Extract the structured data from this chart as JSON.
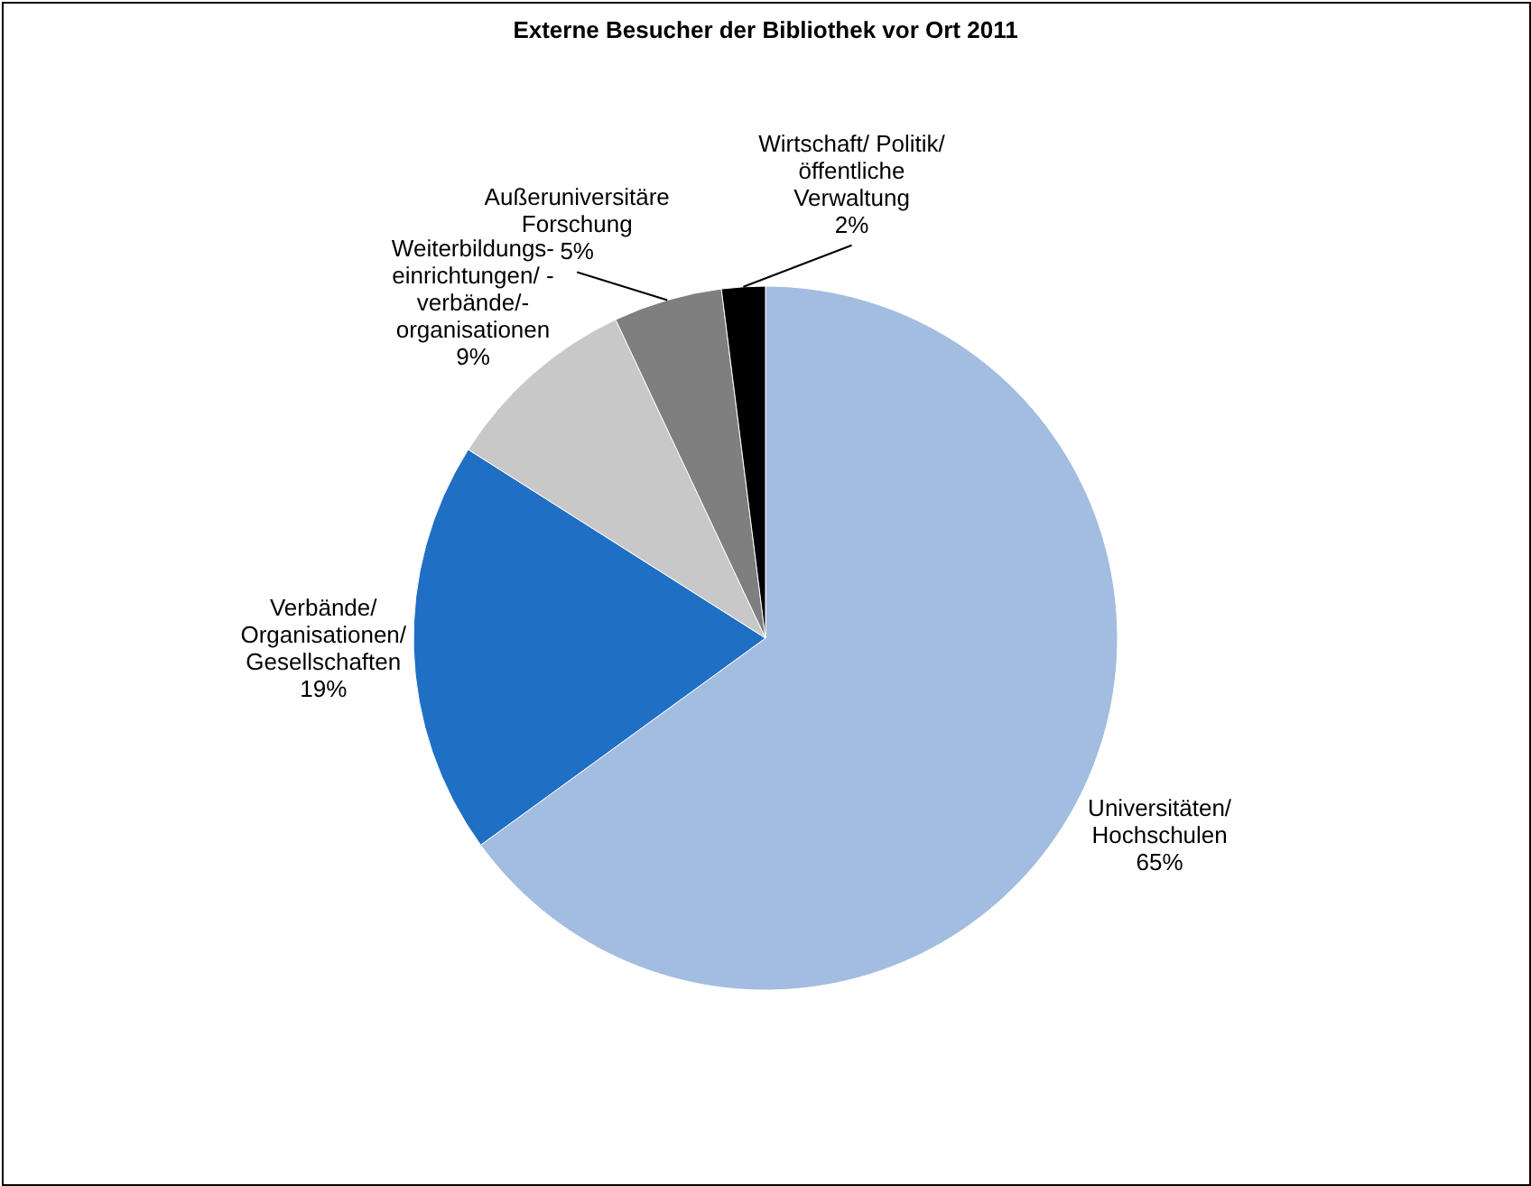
{
  "chart_data": {
    "type": "pie",
    "title": "Externe Besucher der Bibliothek vor Ort 2011",
    "categories": [
      "Universitäten/\nHochschulen",
      "Verbände/\nOrganisationen/\nGesellschaften",
      "Weiterbildungs-\neinrichtungen/ -\nverbände/-\norganisationen",
      "Außeruniversitäre\nForschung",
      "Wirtschaft/ Politik/\nöffentliche\nVerwaltung"
    ],
    "values": [
      65,
      19,
      9,
      5,
      2
    ],
    "colors": [
      "#a3bde0",
      "#1f6fc5",
      "#c8c8c8",
      "#7f7f7f",
      "#000000"
    ],
    "value_labels": [
      "65%",
      "19%",
      "9%",
      "5%",
      "2%"
    ]
  }
}
